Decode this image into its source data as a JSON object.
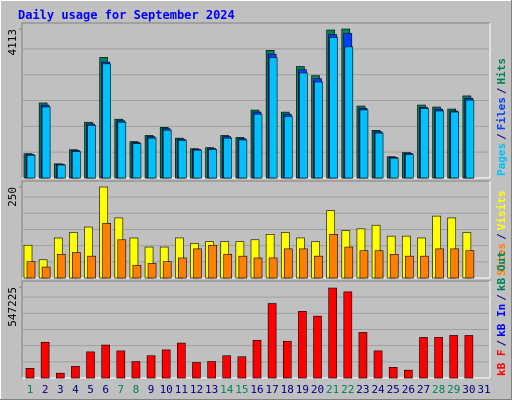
{
  "title": "Daily usage for September 2024",
  "chart_data": [
    {
      "type": "bar",
      "ylim": [
        0,
        4113
      ],
      "yticks": [
        4113
      ],
      "separator": "/",
      "categories": [
        "1",
        "2",
        "3",
        "4",
        "5",
        "6",
        "7",
        "8",
        "9",
        "10",
        "11",
        "12",
        "13",
        "14",
        "15",
        "16",
        "17",
        "18",
        "19",
        "20",
        "21",
        "22",
        "23",
        "24",
        "25",
        "26",
        "27",
        "28",
        "29",
        "30",
        "31"
      ],
      "category_colors": [
        "#00805C",
        "#000080",
        "#000080",
        "#000080",
        "#000080",
        "#000080",
        "#00805C",
        "#00805C",
        "#000080",
        "#000080",
        "#000080",
        "#000080",
        "#000080",
        "#00805C",
        "#00805C",
        "#000080",
        "#000080",
        "#000080",
        "#000080",
        "#000080",
        "#00805C",
        "#00805C",
        "#000080",
        "#000080",
        "#000080",
        "#000080",
        "#000080",
        "#00805C",
        "#00805C",
        "#000080",
        "#000080"
      ],
      "series": [
        {
          "name": "Pages",
          "color": "#00C0FF",
          "values": [
            625,
            1960,
            360,
            730,
            1450,
            3150,
            1540,
            950,
            1100,
            1320,
            1040,
            770,
            790,
            1100,
            1050,
            1760,
            3320,
            1700,
            2900,
            2650,
            3880,
            3620,
            1880,
            1240,
            550,
            650,
            1920,
            1850,
            1820,
            2150,
            0
          ]
        },
        {
          "name": "Files",
          "color": "#0040FF",
          "values": [
            650,
            2010,
            380,
            760,
            1490,
            3200,
            1580,
            980,
            1140,
            1360,
            1070,
            790,
            815,
            1140,
            1085,
            1820,
            3420,
            1760,
            2990,
            2740,
            3960,
            3990,
            1925,
            1275,
            570,
            680,
            1950,
            1900,
            1850,
            2200,
            0
          ]
        },
        {
          "name": "Hits",
          "color": "#00805C",
          "values": [
            672,
            2071,
            392,
            783,
            1539,
            3330,
            1623,
            1007,
            1175,
            1399,
            1100,
            811,
            839,
            1175,
            1119,
            1875,
            3525,
            1819,
            3078,
            2826,
            4085,
            4113,
            1986,
            1315,
            588,
            700,
            2014,
            1959,
            1903,
            2266,
            0
          ]
        }
      ]
    },
    {
      "type": "bar",
      "ylim": [
        0,
        250
      ],
      "yticks": [
        250
      ],
      "separator": "/",
      "series": [
        {
          "name": "Sites",
          "color": "#FF8000",
          "values": [
            45,
            30,
            65,
            70,
            60,
            150,
            105,
            35,
            40,
            45,
            55,
            80,
            90,
            65,
            60,
            55,
            55,
            80,
            80,
            60,
            120,
            85,
            75,
            75,
            65,
            60,
            60,
            80,
            80,
            75,
            0
          ]
        },
        {
          "name": "Visits",
          "color": "#FFFF00",
          "values": [
            90,
            50,
            110,
            125,
            140,
            250,
            165,
            110,
            85,
            85,
            110,
            95,
            100,
            100,
            100,
            105,
            120,
            125,
            110,
            100,
            185,
            130,
            135,
            145,
            115,
            115,
            110,
            170,
            165,
            125,
            0
          ]
        }
      ]
    },
    {
      "type": "bar",
      "ylim": [
        0,
        547225
      ],
      "yticks": [
        547225
      ],
      "separator": "/",
      "series": [
        {
          "name": "kB F",
          "color": "#FF0000",
          "values": [
            58000,
            215000,
            29000,
            70000,
            157000,
            198000,
            163000,
            99000,
            134000,
            169000,
            210000,
            93000,
            99000,
            134000,
            128000,
            227000,
            448000,
            221000,
            401000,
            372000,
            541000,
            518000,
            274000,
            163000,
            64000,
            47000,
            244000,
            244000,
            256000,
            256000,
            0
          ]
        },
        {
          "name": "kB In",
          "color": "#0000FF",
          "values": []
        },
        {
          "name": "kB Out",
          "color": "#00805C",
          "values": []
        }
      ]
    }
  ]
}
